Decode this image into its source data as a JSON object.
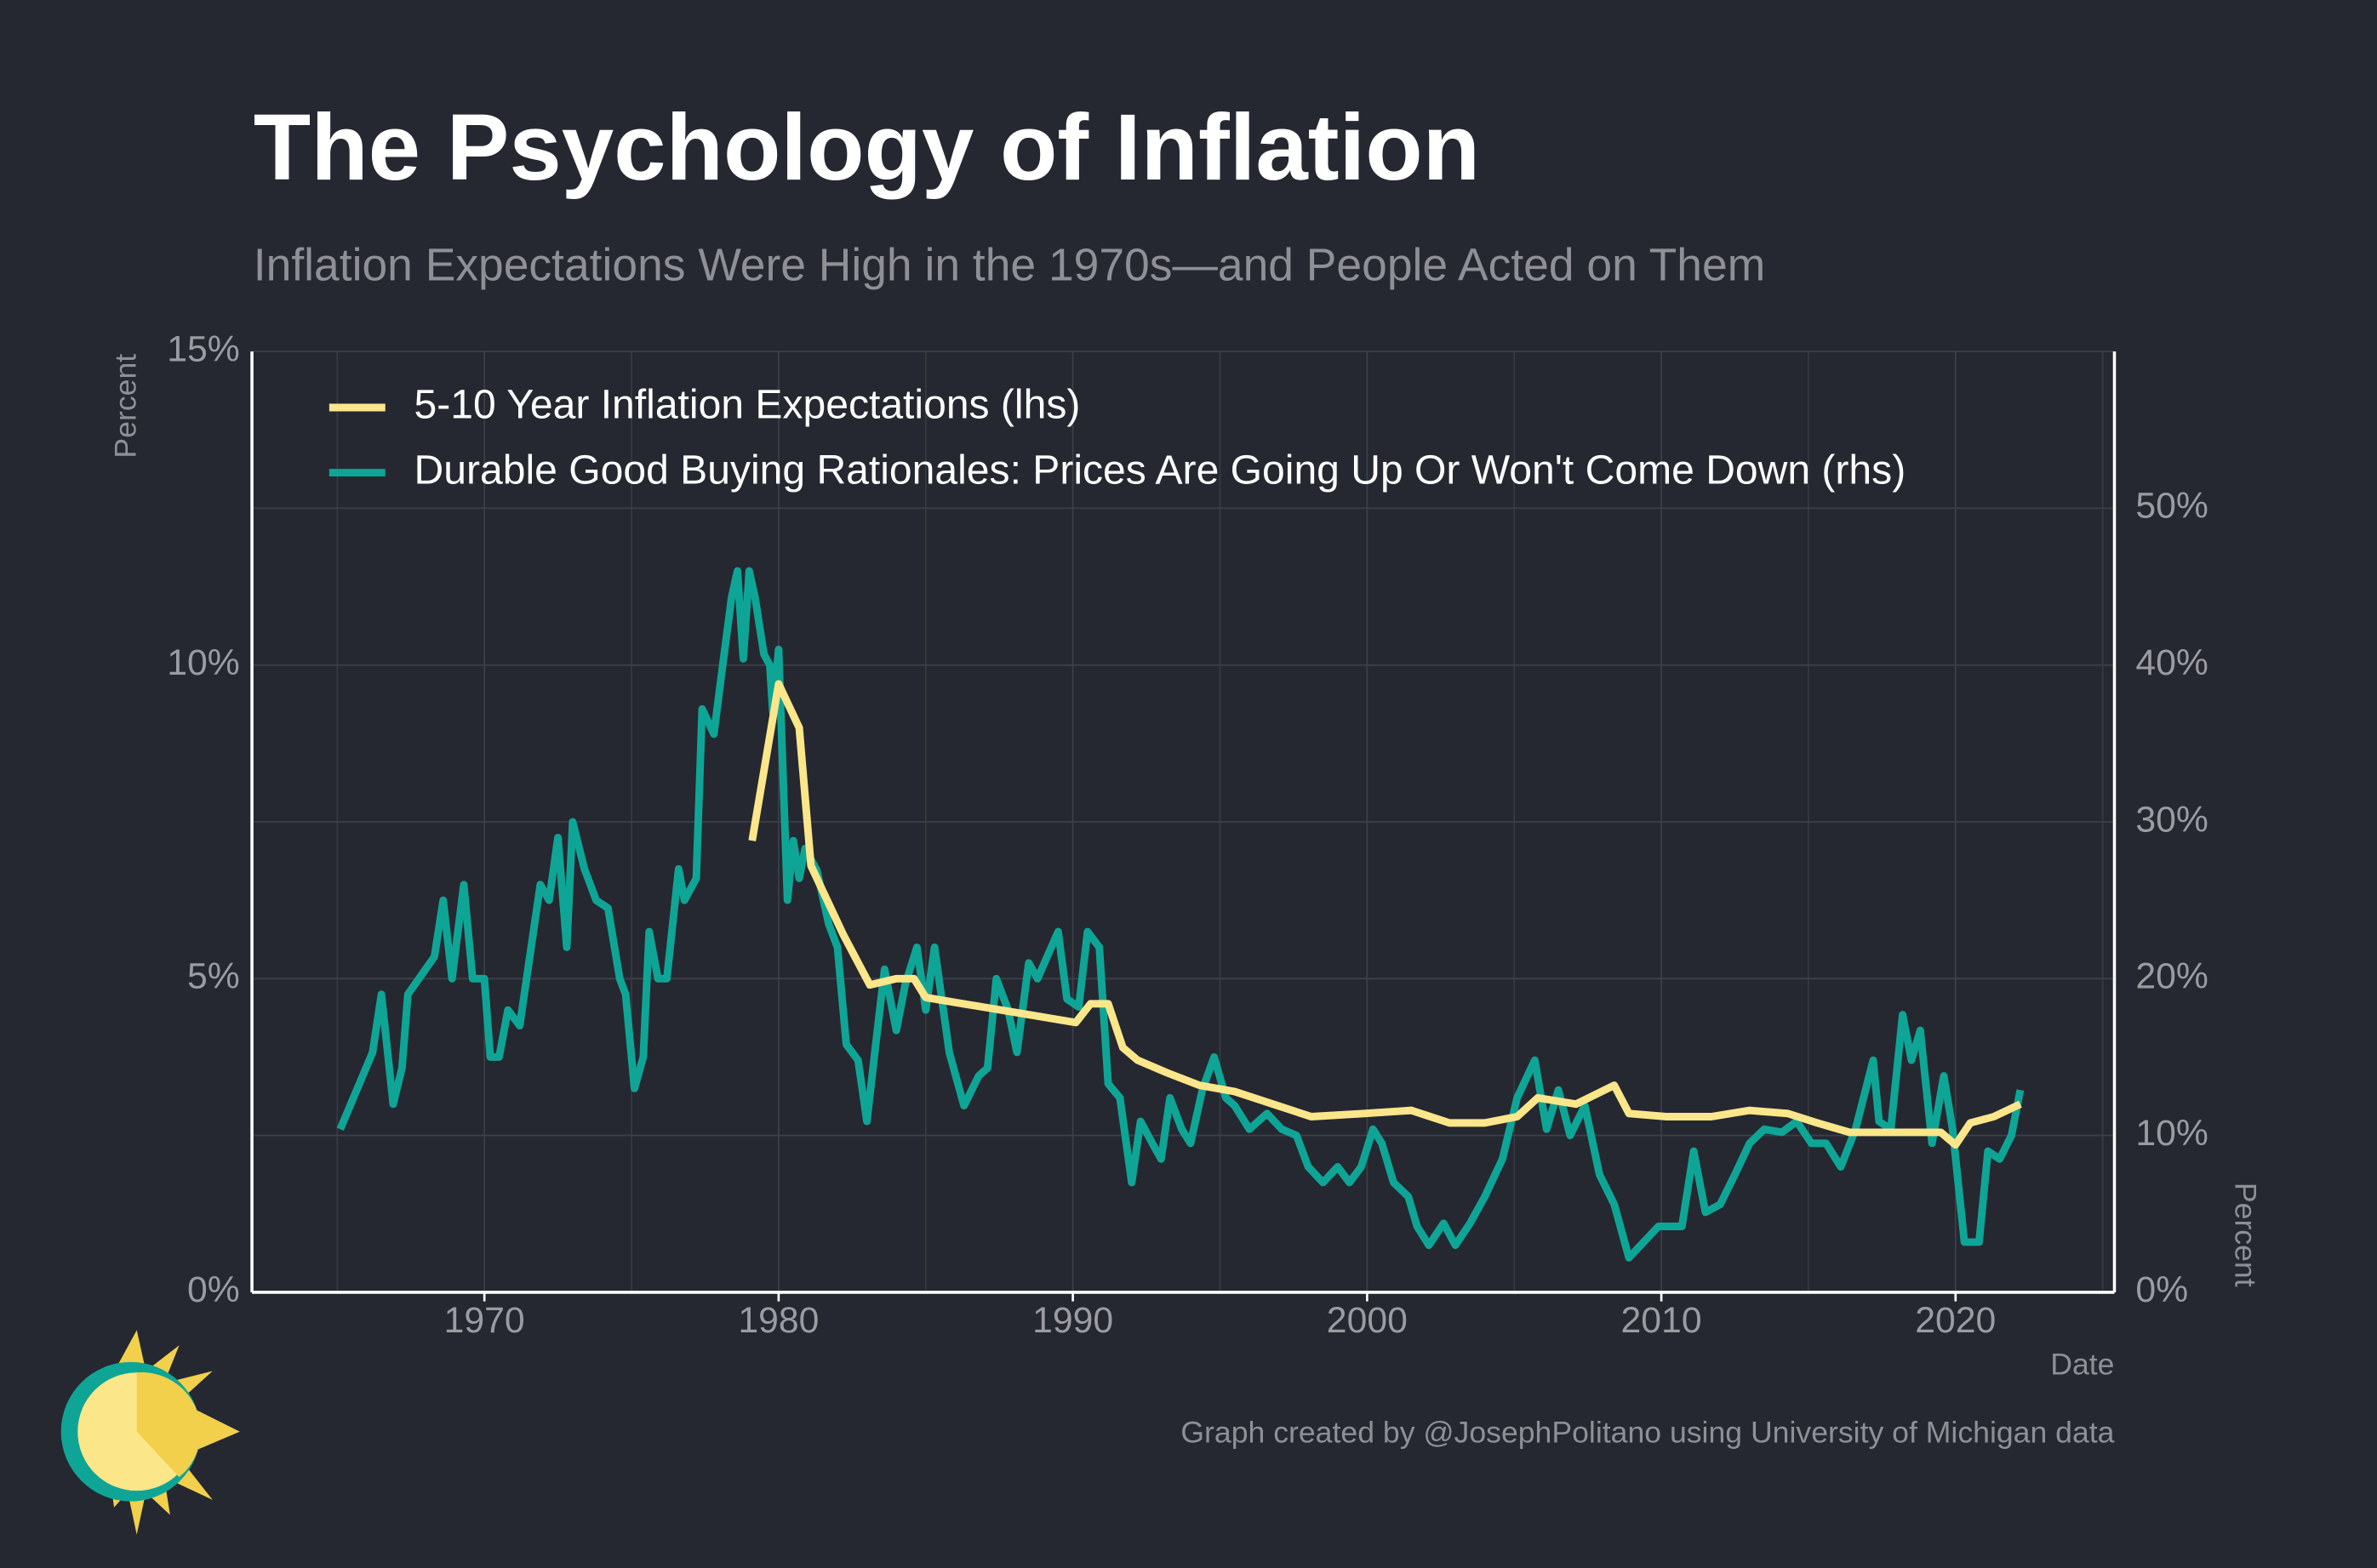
{
  "chart_data": {
    "type": "line",
    "title": "The Psychology of Inflation",
    "subtitle": "Inflation Expectations Were High in the 1970s—and People Acted on Them",
    "y_label": "Percent",
    "y2_label": "Percent",
    "x_label": "Date",
    "caption": "Graph created by @JosephPolitano using University of Michigan data",
    "xlim": [
      1962.1,
      2025.4
    ],
    "xticks": [
      1970,
      1980,
      1990,
      2000,
      2010,
      2020
    ],
    "ylim": [
      0,
      15
    ],
    "yticks": [
      {
        "value": 0,
        "label": "0%"
      },
      {
        "value": 5,
        "label": "5%"
      },
      {
        "value": 10,
        "label": "10%"
      },
      {
        "value": 15,
        "label": "15%"
      }
    ],
    "y2lim": [
      0,
      60
    ],
    "y2ticks": [
      {
        "value": 0,
        "label": "0%"
      },
      {
        "value": 10,
        "label": "10%"
      },
      {
        "value": 20,
        "label": "20%"
      },
      {
        "value": 30,
        "label": "30%"
      },
      {
        "value": 40,
        "label": "40%"
      },
      {
        "value": 50,
        "label": "50%"
      }
    ],
    "grid": true,
    "legend": "top-left",
    "series": [
      {
        "name": "5-10 Year Inflation Expectations (lhs)",
        "color": "#fce68a",
        "axis": "y",
        "x": [
          1979.1,
          1980,
          1980.7,
          1981.1,
          1982.2,
          1983.1,
          1984,
          1984.6,
          1985,
          1990.1,
          1990.6,
          1991.2,
          1991.7,
          1992.2,
          1993.2,
          1994.3,
          1995.5,
          1996.8,
          1998.1,
          1999.9,
          2001.5,
          2002.8,
          2004,
          2005.1,
          2005.8,
          2007.1,
          2008.4,
          2008.9,
          2010.2,
          2011.7,
          2013,
          2014.3,
          2015.3,
          2016.4,
          2017.9,
          2019.5,
          2020,
          2020.5,
          2021.3,
          2022.2
        ],
        "values": [
          7.2,
          9.7,
          9.0,
          6.8,
          5.7,
          4.9,
          5.0,
          5.0,
          4.7,
          4.3,
          4.6,
          4.6,
          3.9,
          3.7,
          3.5,
          3.3,
          3.2,
          3.0,
          2.8,
          2.85,
          2.9,
          2.7,
          2.7,
          2.8,
          3.1,
          3.0,
          3.3,
          2.85,
          2.8,
          2.8,
          2.9,
          2.85,
          2.7,
          2.55,
          2.55,
          2.55,
          2.35,
          2.7,
          2.8,
          3.0
        ]
      },
      {
        "name": "Durable Good Buying Rationales: Prices Are Going Up Or Won't Come Down (rhs)",
        "color": "#0fa596",
        "axis": "y2",
        "x": [
          1965.1,
          1966.2,
          1966.5,
          1966.9,
          1967.2,
          1967.4,
          1968.3,
          1968.6,
          1968.9,
          1969.3,
          1969.6,
          1970,
          1970.2,
          1970.5,
          1970.8,
          1971.2,
          1971.9,
          1972.2,
          1972.5,
          1972.8,
          1973,
          1973.4,
          1973.8,
          1974.2,
          1974.6,
          1974.8,
          1975.1,
          1975.4,
          1975.6,
          1975.9,
          1976.2,
          1976.6,
          1976.8,
          1977.2,
          1977.4,
          1977.8,
          1978.1,
          1978.4,
          1978.6,
          1978.8,
          1979,
          1979.2,
          1979.5,
          1979.7,
          1979.8,
          1980,
          1980.3,
          1980.5,
          1980.7,
          1980.9,
          1981.3,
          1981.7,
          1982,
          1982.3,
          1982.7,
          1983,
          1983.3,
          1983.6,
          1984,
          1984.3,
          1984.7,
          1985,
          1985.3,
          1985.8,
          1986.3,
          1986.8,
          1987.1,
          1987.4,
          1987.8,
          1988.1,
          1988.5,
          1988.8,
          1989.5,
          1989.8,
          1990.2,
          1990.5,
          1990.9,
          1991.2,
          1991.6,
          1992,
          1992.3,
          1992.7,
          1993,
          1993.3,
          1993.7,
          1994,
          1994.4,
          1994.8,
          1995.2,
          1995.5,
          1996,
          1996.6,
          1997.1,
          1997.6,
          1998,
          1998.5,
          1999,
          1999.4,
          1999.8,
          2000.2,
          2000.5,
          2000.9,
          2001.4,
          2001.7,
          2002.1,
          2002.6,
          2003,
          2003.5,
          2004,
          2004.6,
          2005.1,
          2005.7,
          2006.1,
          2006.5,
          2006.9,
          2007.4,
          2007.9,
          2008.4,
          2008.9,
          2009.4,
          2009.9,
          2010.7,
          2011.1,
          2011.5,
          2012,
          2012.5,
          2013,
          2013.5,
          2014.1,
          2014.6,
          2015.1,
          2015.6,
          2016.1,
          2016.6,
          2017.2,
          2017.4,
          2017.8,
          2018.2,
          2018.5,
          2018.8,
          2019.2,
          2019.6,
          2019.9,
          2020.3,
          2020.8,
          2021.1,
          2021.5,
          2021.9,
          2022.2
        ],
        "values": [
          10.4,
          15.3,
          19,
          12,
          14.3,
          19,
          21.4,
          25,
          20,
          26,
          20,
          20,
          15,
          15,
          18,
          17,
          26,
          25,
          29,
          22,
          30,
          27,
          25,
          24.5,
          20,
          19,
          13,
          15,
          23,
          20,
          20,
          27,
          25,
          26.4,
          37.2,
          35.6,
          40,
          44.3,
          46,
          40.4,
          46,
          44.3,
          40.7,
          40,
          37,
          41,
          25,
          28.8,
          26.4,
          28.3,
          26.9,
          23.5,
          22,
          15.8,
          14.8,
          10.9,
          15.8,
          20.6,
          16.7,
          19.6,
          22,
          18,
          22,
          15.3,
          11.9,
          13.8,
          14.3,
          20,
          18,
          15.3,
          21,
          20,
          23,
          18.7,
          18.2,
          23,
          22,
          13.3,
          12.4,
          7,
          10.9,
          9.5,
          8.5,
          12.4,
          10.4,
          9.5,
          12.9,
          15,
          12.4,
          11.9,
          10.4,
          11.4,
          10.4,
          10,
          8,
          7,
          8,
          7,
          8,
          10.4,
          9.5,
          7,
          6.1,
          4.2,
          3,
          4.4,
          3,
          4.4,
          6.1,
          8.5,
          12.4,
          14.8,
          10.4,
          12.9,
          10,
          11.9,
          7.5,
          5.6,
          2.2,
          3.2,
          4.2,
          4.2,
          9,
          5.1,
          5.6,
          7.5,
          9.5,
          10.4,
          10.2,
          10.9,
          9.5,
          9.5,
          8,
          10.4,
          14.8,
          10.9,
          10.4,
          17.7,
          14.8,
          16.7,
          9.5,
          13.8,
          10.4,
          3.2,
          3.2,
          9,
          8.5,
          10,
          12.9
        ]
      }
    ]
  }
}
